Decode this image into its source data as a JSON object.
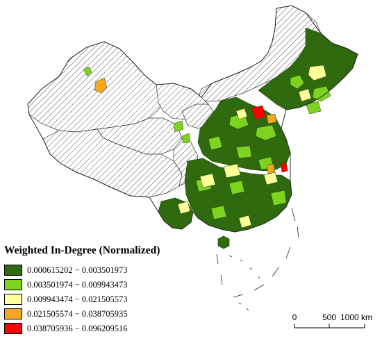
{
  "legend": {
    "title": "Weighted In-Degree (Normalized)",
    "classes": [
      {
        "label": "0.000615202 − 0.003501973",
        "color": "#2f6a0e"
      },
      {
        "label": "0.003501974 − 0.009943473",
        "color": "#7ed321"
      },
      {
        "label": "0.009943474 − 0.021505573",
        "color": "#ffff99"
      },
      {
        "label": "0.021505574 − 0.038705935",
        "color": "#f5a623"
      },
      {
        "label": "0.038705936 − 0.096209516",
        "color": "#ff0000"
      }
    ]
  },
  "scale_bar": {
    "labels": [
      "0",
      "500",
      "1000 km"
    ]
  },
  "no_data_pattern": "diagonal-hatch"
}
